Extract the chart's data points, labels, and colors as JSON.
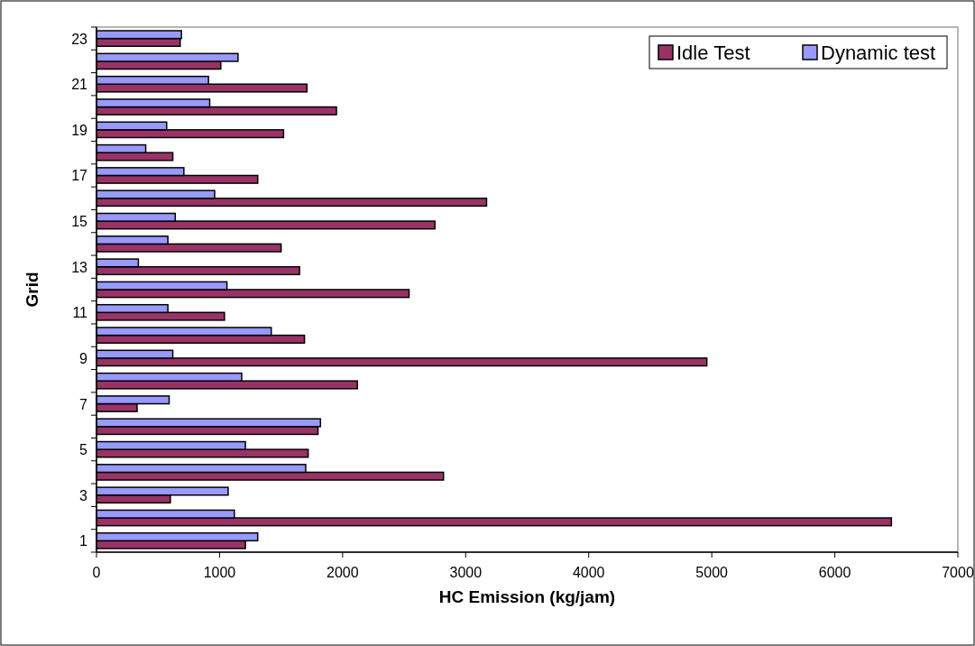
{
  "chart_data": {
    "type": "bar",
    "orientation": "horizontal",
    "xlabel": "HC Emission (kg/jam)",
    "ylabel": "Grid",
    "categories": [
      "23",
      null,
      "21",
      null,
      "19",
      null,
      "17",
      null,
      "15",
      null,
      "13",
      null,
      "11",
      null,
      "9",
      null,
      "7",
      null,
      "5",
      null,
      "3",
      null,
      "1"
    ],
    "series": [
      {
        "name": "Idle Test",
        "color": "#993366",
        "values": [
          680,
          1010,
          1710,
          1950,
          1520,
          620,
          1310,
          3170,
          2750,
          1500,
          1650,
          2540,
          1040,
          1690,
          4960,
          2120,
          330,
          1800,
          1720,
          2820,
          600,
          6460,
          1210
        ]
      },
      {
        "name": "Dynamic test",
        "color": "#9999ff",
        "values": [
          690,
          1150,
          910,
          920,
          570,
          400,
          710,
          960,
          640,
          580,
          340,
          1060,
          580,
          1420,
          620,
          1180,
          590,
          1820,
          1210,
          1700,
          1070,
          1120,
          1310
        ]
      }
    ],
    "xlim": [
      0,
      7000
    ],
    "xticks": [
      0,
      1000,
      2000,
      3000,
      4000,
      5000,
      6000,
      7000
    ],
    "grid": false,
    "legend": "top right"
  }
}
